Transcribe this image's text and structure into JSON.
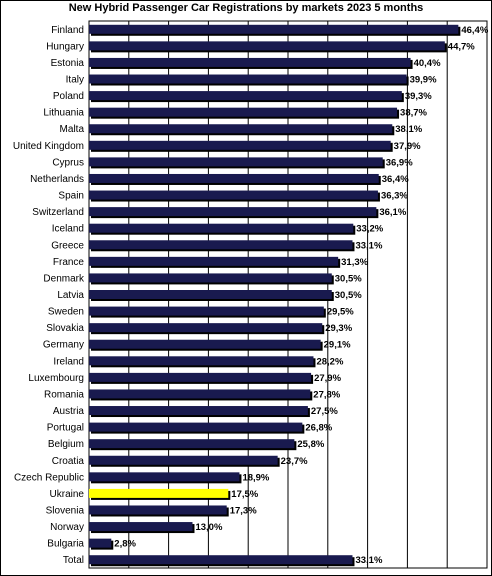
{
  "chart_data": {
    "type": "bar",
    "orientation": "horizontal",
    "title": "New Hybrid Passenger Car Registrations by markets  2023 5 months",
    "categories": [
      "Finland",
      "Hungary",
      "Estonia",
      "Italy",
      "Poland",
      "Lithuania",
      "Malta",
      "United Kingdom",
      "Cyprus",
      "Netherlands",
      "Spain",
      "Switzerland",
      "Iceland",
      "Greece",
      "France",
      "Denmark",
      "Latvia",
      "Sweden",
      "Slovakia",
      "Germany",
      "Ireland",
      "Luxembourg",
      "Romania",
      "Austria",
      "Portugal",
      "Belgium",
      "Croatia",
      "Czech Republic",
      "Ukraine",
      "Slovenia",
      "Norway",
      "Bulgaria",
      "Total"
    ],
    "values": [
      46.4,
      44.7,
      40.4,
      39.9,
      39.3,
      38.7,
      38.1,
      37.9,
      36.9,
      36.4,
      36.3,
      36.1,
      33.2,
      33.1,
      31.3,
      30.5,
      30.5,
      29.5,
      29.3,
      29.1,
      28.2,
      27.9,
      27.8,
      27.5,
      26.8,
      25.8,
      23.7,
      18.9,
      17.5,
      17.3,
      13.0,
      2.8,
      33.1
    ],
    "labels": [
      "46,4%",
      "44,7%",
      "40,4%",
      "39,9%",
      "39,3%",
      "38,7%",
      "38,1%",
      "37,9%",
      "36,9%",
      "36,4%",
      "36,3%",
      "36,1%",
      "33,2%",
      "33,1%",
      "31,3%",
      "30,5%",
      "30,5%",
      "29,5%",
      "29,3%",
      "29,1%",
      "28,2%",
      "27,9%",
      "27,8%",
      "27,5%",
      "26,8%",
      "25,8%",
      "23,7%",
      "18,9%",
      "17,5%",
      "17,3%",
      "13,0%",
      "2,8%",
      "33,1%"
    ],
    "highlight": "Ukraine",
    "xlim": [
      0,
      50
    ],
    "grid": true,
    "colors": {
      "bar": "#191a4f",
      "highlight": "#ffff00",
      "shadow": "#000000",
      "grid": "#000000"
    }
  }
}
